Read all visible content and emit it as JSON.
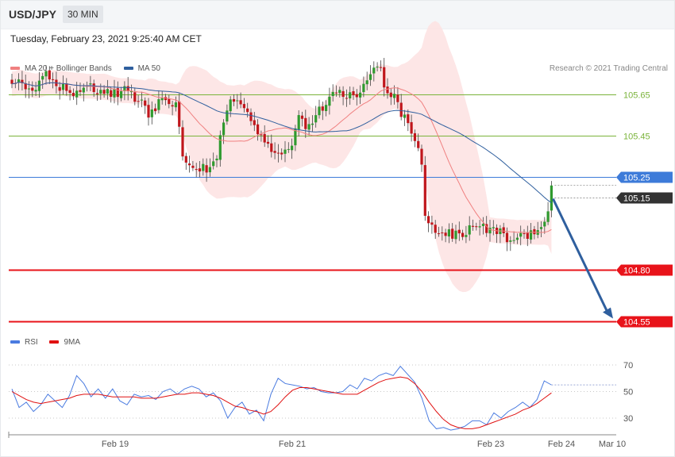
{
  "header": {
    "symbol": "USD/JPY",
    "interval": "30 MIN",
    "datetime": "Tuesday, February 23, 2021 9:25:40 AM CET",
    "credit": "Research © 2021 Trading Central"
  },
  "legend_main": [
    {
      "label": "MA 20 + Bollinger Bands",
      "color": "#f08080"
    },
    {
      "label": "MA 50",
      "color": "#2f5f9e"
    }
  ],
  "legend_rsi": [
    {
      "label": "RSI",
      "color": "#4a7be0"
    },
    {
      "label": "9MA",
      "color": "#e01010"
    }
  ],
  "colors": {
    "up": "#2f9a2f",
    "down": "#c0161c",
    "resistance": "#7ab33a",
    "pivot": "#3d7bd9",
    "support": "#e8131a",
    "last": "#333333",
    "arrow": "#2f5f9e",
    "band": "#fde2e2",
    "ma20": "#f08080",
    "ma50": "#2f5f9e",
    "rsi": "#4a7be0",
    "rsi_ma": "#e01010"
  },
  "chart_data": [
    {
      "type": "candlestick",
      "ylim": [
        104.5,
        106.1
      ],
      "level_labels": [
        "105.65",
        "105.45",
        "105.25",
        "105.15",
        "104.80",
        "104.55"
      ],
      "levels": [
        {
          "value": 105.65,
          "kind": "resistance"
        },
        {
          "value": 105.45,
          "kind": "resistance"
        },
        {
          "value": 105.25,
          "kind": "pivot"
        },
        {
          "value": 105.15,
          "kind": "last"
        },
        {
          "value": 104.8,
          "kind": "support"
        },
        {
          "value": 104.55,
          "kind": "support"
        }
      ],
      "x_ticks": [
        "Feb 19",
        "Feb 21",
        "Feb 23",
        "Feb 24",
        "Mar 10"
      ],
      "series": [
        {
          "name": "MA 20 + Bollinger Bands",
          "role": "ma20_band"
        },
        {
          "name": "MA 50",
          "role": "ma50"
        }
      ],
      "anchors": [
        [
          0,
          105.72
        ],
        [
          6,
          105.66
        ],
        [
          10,
          105.77
        ],
        [
          12,
          105.7
        ],
        [
          15,
          105.69
        ],
        [
          20,
          105.64
        ],
        [
          22,
          105.7
        ],
        [
          25,
          105.66
        ],
        [
          30,
          105.66
        ],
        [
          34,
          105.67
        ],
        [
          36,
          105.62
        ],
        [
          38,
          105.63
        ],
        [
          40,
          105.56
        ],
        [
          44,
          105.62
        ],
        [
          48,
          105.6
        ],
        [
          50,
          105.35
        ],
        [
          53,
          105.32
        ],
        [
          57,
          105.28
        ],
        [
          60,
          105.36
        ],
        [
          62,
          105.5
        ],
        [
          64,
          105.63
        ],
        [
          66,
          105.6
        ],
        [
          68,
          105.59
        ],
        [
          70,
          105.5
        ],
        [
          72,
          105.47
        ],
        [
          74,
          105.4
        ],
        [
          76,
          105.38
        ],
        [
          79,
          105.36
        ],
        [
          82,
          105.4
        ],
        [
          84,
          105.57
        ],
        [
          86,
          105.48
        ],
        [
          88,
          105.49
        ],
        [
          90,
          105.57
        ],
        [
          92,
          105.62
        ],
        [
          94,
          105.65
        ],
        [
          96,
          105.66
        ],
        [
          98,
          105.64
        ],
        [
          100,
          105.65
        ],
        [
          102,
          105.66
        ],
        [
          104,
          105.7
        ],
        [
          106,
          105.78
        ],
        [
          108,
          105.76
        ],
        [
          110,
          105.66
        ],
        [
          112,
          105.65
        ],
        [
          114,
          105.55
        ],
        [
          116,
          105.52
        ],
        [
          118,
          105.44
        ],
        [
          120,
          105.3
        ],
        [
          121,
          105.08
        ],
        [
          123,
          105.01
        ],
        [
          126,
          104.98
        ],
        [
          130,
          104.97
        ],
        [
          133,
          104.98
        ],
        [
          136,
          105.02
        ],
        [
          140,
          105.0
        ],
        [
          143,
          104.98
        ],
        [
          145,
          104.96
        ],
        [
          148,
          104.96
        ],
        [
          152,
          104.98
        ],
        [
          155,
          105.0
        ],
        [
          157,
          105.08
        ],
        [
          158,
          105.19
        ]
      ]
    },
    {
      "type": "line",
      "ylim": [
        20,
        80
      ],
      "y_ticks": [
        70,
        50,
        30
      ],
      "series": [
        {
          "name": "RSI",
          "values": [
            52,
            38,
            42,
            35,
            40,
            48,
            43,
            38,
            47,
            62,
            56,
            46,
            52,
            45,
            52,
            43,
            40,
            48,
            46,
            47,
            44,
            50,
            52,
            48,
            52,
            54,
            52,
            46,
            49,
            43,
            30,
            38,
            42,
            33,
            36,
            28,
            48,
            60,
            56,
            55,
            54,
            52,
            53,
            50,
            49,
            49,
            50,
            55,
            52,
            60,
            58,
            62,
            64,
            62,
            69,
            63,
            57,
            45,
            28,
            22,
            23,
            21,
            22,
            24,
            28,
            28,
            25,
            34,
            30,
            35,
            38,
            42,
            38,
            44,
            58,
            55
          ]
        },
        {
          "name": "9MA",
          "values": [
            50,
            47,
            44,
            42,
            41,
            42,
            43,
            44,
            45,
            47,
            48,
            48,
            48,
            47,
            46,
            46,
            46,
            46,
            45,
            45,
            45,
            46,
            47,
            48,
            48,
            49,
            49,
            48,
            47,
            45,
            42,
            39,
            38,
            36,
            35,
            33,
            35,
            40,
            46,
            51,
            53,
            53,
            52,
            51,
            50,
            49,
            48,
            48,
            48,
            51,
            54,
            57,
            59,
            60,
            61,
            60,
            56,
            50,
            42,
            35,
            29,
            25,
            23,
            22,
            22,
            23,
            25,
            27,
            29,
            31,
            33,
            36,
            38,
            41,
            45,
            49
          ]
        }
      ]
    }
  ]
}
